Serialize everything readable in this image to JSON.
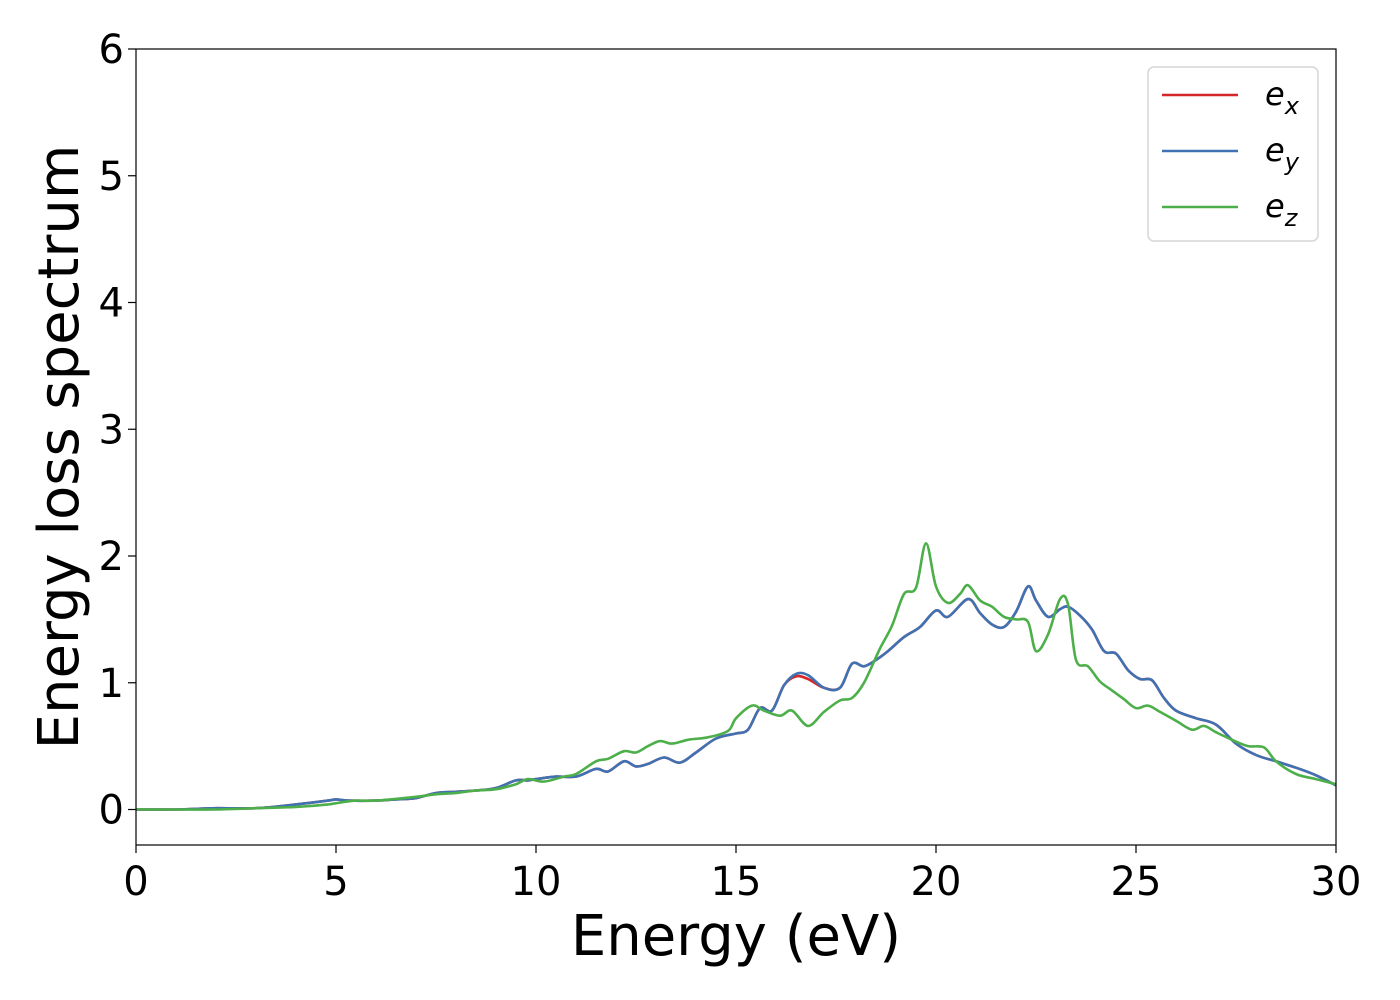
{
  "chart_data": {
    "type": "line",
    "title": "",
    "xlabel": "Energy (eV)",
    "ylabel": "Energy loss spectrum",
    "xlim": [
      0,
      30
    ],
    "ylim": [
      -0.28,
      6.0
    ],
    "xticks": [
      0,
      5,
      10,
      15,
      20,
      25,
      30
    ],
    "yticks": [
      0,
      1,
      2,
      3,
      4,
      5,
      6
    ],
    "grid": false,
    "legend_position": "top-right",
    "series": [
      {
        "name": "e",
        "subscript": "x",
        "color": "#d62728",
        "x": [
          0,
          1,
          2,
          3,
          4,
          4.8,
          5,
          5.3,
          6,
          6.5,
          7,
          7.5,
          8,
          8.5,
          9,
          9.5,
          9.8,
          10,
          10.5,
          11,
          11.5,
          11.8,
          12.2,
          12.5,
          12.8,
          13.2,
          13.6,
          14,
          14.5,
          15,
          15.3,
          15.6,
          15.9,
          16.2,
          16.5,
          16.8,
          17.2,
          17.6,
          17.9,
          18.2,
          18.5,
          18.8,
          19.2,
          19.6,
          20,
          20.3,
          20.8,
          21.1,
          21.4,
          21.7,
          22,
          22.3,
          22.5,
          22.8,
          23.1,
          23.3,
          23.6,
          23.9,
          24.2,
          24.5,
          24.8,
          25.1,
          25.4,
          25.7,
          26,
          26.5,
          27,
          27.5,
          28,
          28.5,
          29,
          29.5,
          30
        ],
        "y": [
          0.0,
          0.0,
          0.01,
          0.01,
          0.04,
          0.07,
          0.08,
          0.07,
          0.07,
          0.08,
          0.09,
          0.13,
          0.14,
          0.15,
          0.17,
          0.23,
          0.23,
          0.24,
          0.26,
          0.26,
          0.32,
          0.3,
          0.38,
          0.34,
          0.36,
          0.41,
          0.37,
          0.45,
          0.56,
          0.6,
          0.63,
          0.8,
          0.78,
          0.98,
          1.05,
          1.03,
          0.96,
          0.96,
          1.15,
          1.13,
          1.18,
          1.25,
          1.36,
          1.44,
          1.57,
          1.52,
          1.66,
          1.55,
          1.46,
          1.44,
          1.56,
          1.76,
          1.65,
          1.52,
          1.58,
          1.6,
          1.53,
          1.42,
          1.25,
          1.23,
          1.1,
          1.03,
          1.02,
          0.88,
          0.78,
          0.72,
          0.67,
          0.52,
          0.43,
          0.38,
          0.33,
          0.27,
          0.19
        ]
      },
      {
        "name": "e",
        "subscript": "y",
        "color": "#3e72b3",
        "x": [
          0,
          1,
          2,
          3,
          4,
          4.8,
          5,
          5.3,
          6,
          6.5,
          7,
          7.5,
          8,
          8.5,
          9,
          9.5,
          9.8,
          10,
          10.5,
          11,
          11.5,
          11.8,
          12.2,
          12.5,
          12.8,
          13.2,
          13.6,
          14,
          14.5,
          15,
          15.3,
          15.6,
          15.9,
          16.2,
          16.5,
          16.8,
          17.2,
          17.6,
          17.9,
          18.2,
          18.5,
          18.8,
          19.2,
          19.6,
          20,
          20.3,
          20.8,
          21.1,
          21.4,
          21.7,
          22,
          22.3,
          22.5,
          22.8,
          23.1,
          23.3,
          23.6,
          23.9,
          24.2,
          24.5,
          24.8,
          25.1,
          25.4,
          25.7,
          26,
          26.5,
          27,
          27.5,
          28,
          28.5,
          29,
          29.5,
          30
        ],
        "y": [
          0.0,
          0.0,
          0.01,
          0.01,
          0.04,
          0.07,
          0.08,
          0.07,
          0.07,
          0.08,
          0.09,
          0.13,
          0.14,
          0.15,
          0.17,
          0.23,
          0.23,
          0.24,
          0.26,
          0.26,
          0.32,
          0.3,
          0.38,
          0.34,
          0.36,
          0.41,
          0.37,
          0.45,
          0.56,
          0.6,
          0.63,
          0.8,
          0.78,
          0.98,
          1.07,
          1.06,
          0.96,
          0.96,
          1.15,
          1.13,
          1.18,
          1.25,
          1.36,
          1.44,
          1.57,
          1.52,
          1.66,
          1.55,
          1.46,
          1.44,
          1.56,
          1.76,
          1.65,
          1.52,
          1.58,
          1.6,
          1.53,
          1.42,
          1.25,
          1.23,
          1.1,
          1.03,
          1.02,
          0.88,
          0.78,
          0.72,
          0.67,
          0.52,
          0.43,
          0.38,
          0.33,
          0.27,
          0.19
        ]
      },
      {
        "name": "e",
        "subscript": "z",
        "color": "#4daf4a",
        "x": [
          0,
          1,
          2,
          3,
          4,
          4.8,
          5,
          5.5,
          6,
          7,
          7.5,
          8,
          8.5,
          9,
          9.5,
          9.8,
          10.2,
          10.7,
          11,
          11.5,
          11.8,
          12.2,
          12.5,
          12.8,
          13.1,
          13.4,
          13.8,
          14.3,
          14.8,
          15,
          15.4,
          15.7,
          16.1,
          16.4,
          16.8,
          17.2,
          17.6,
          17.9,
          18.2,
          18.6,
          18.9,
          19.2,
          19.5,
          19.75,
          20,
          20.3,
          20.6,
          20.8,
          21.1,
          21.4,
          21.7,
          22,
          22.3,
          22.5,
          22.8,
          23.1,
          23.3,
          23.5,
          23.8,
          24.1,
          24.4,
          24.7,
          25,
          25.3,
          25.6,
          26,
          26.4,
          26.7,
          27,
          27.4,
          27.8,
          28.2,
          28.5,
          29,
          29.5,
          30
        ],
        "y": [
          0.0,
          0.0,
          0.0,
          0.01,
          0.02,
          0.04,
          0.05,
          0.07,
          0.07,
          0.1,
          0.12,
          0.13,
          0.15,
          0.16,
          0.2,
          0.24,
          0.22,
          0.26,
          0.28,
          0.38,
          0.4,
          0.46,
          0.45,
          0.5,
          0.54,
          0.52,
          0.55,
          0.57,
          0.62,
          0.72,
          0.82,
          0.78,
          0.74,
          0.78,
          0.66,
          0.77,
          0.86,
          0.88,
          1.0,
          1.27,
          1.45,
          1.7,
          1.75,
          2.1,
          1.76,
          1.63,
          1.7,
          1.77,
          1.65,
          1.6,
          1.52,
          1.5,
          1.48,
          1.25,
          1.38,
          1.66,
          1.62,
          1.18,
          1.13,
          1.01,
          0.94,
          0.87,
          0.8,
          0.82,
          0.77,
          0.7,
          0.63,
          0.66,
          0.61,
          0.55,
          0.5,
          0.49,
          0.38,
          0.28,
          0.24,
          0.2
        ]
      }
    ]
  }
}
